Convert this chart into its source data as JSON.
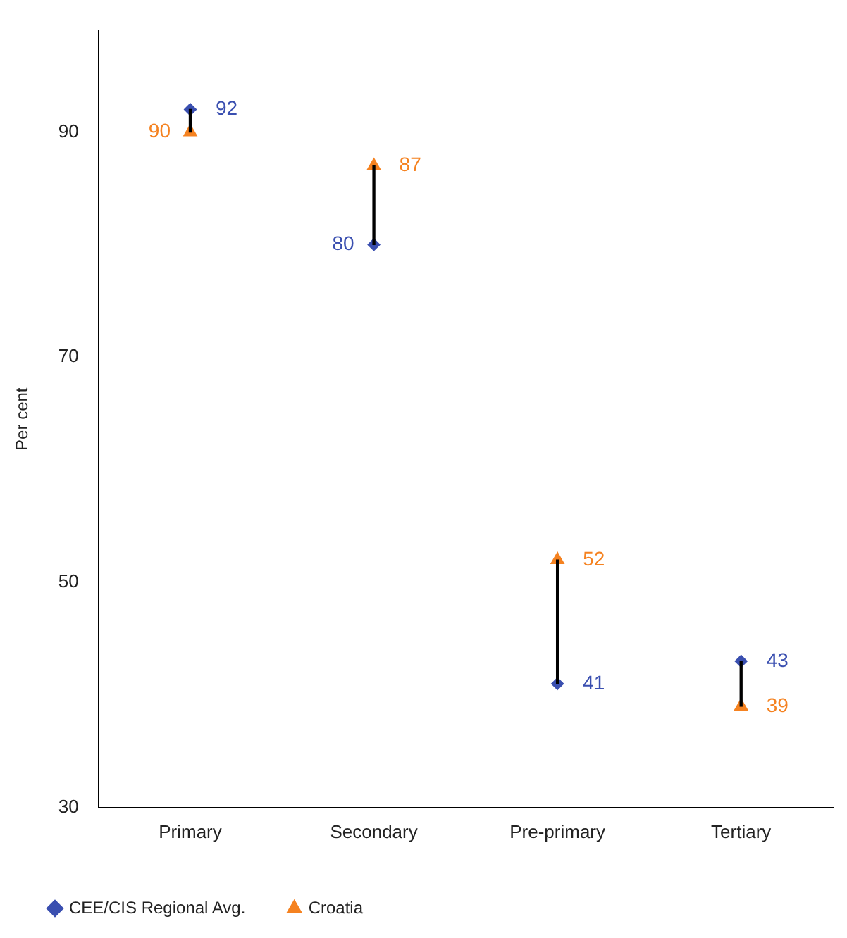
{
  "chart_data": {
    "type": "scatter",
    "ylabel": "Per cent",
    "categories": [
      "Primary",
      "Secondary",
      "Pre-primary",
      "Tertiary"
    ],
    "ylim": [
      30,
      99
    ],
    "yticks": [
      30,
      50,
      70,
      90
    ],
    "grid": false,
    "legend": "bottom",
    "series": [
      {
        "type": "bar",
        "color": "#000000",
        "base": [
          90,
          80,
          41,
          39
        ],
        "values": [
          2,
          7,
          11,
          4
        ],
        "value_labels": [
          null,
          null,
          null,
          null
        ]
      },
      {
        "name": "CEE/CIS Regional Avg.",
        "color": "#3a4fb0",
        "marker": "diamond",
        "values": [
          92,
          80,
          41,
          43
        ],
        "value_labels": [
          "92",
          "80",
          "41",
          "43"
        ]
      },
      {
        "name": "Croatia",
        "color": "#f58220",
        "marker": "triangle",
        "values": [
          90,
          87,
          52,
          39
        ],
        "value_labels": [
          "90",
          "87",
          "52",
          "39"
        ]
      }
    ]
  }
}
